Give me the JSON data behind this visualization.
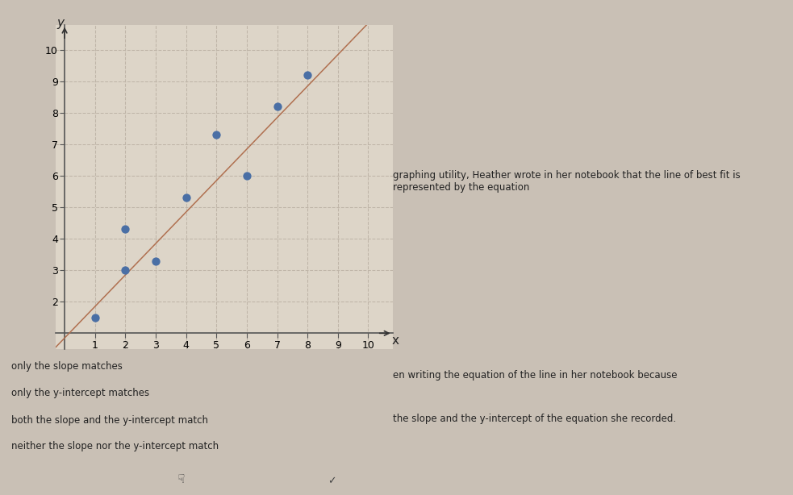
{
  "scatter_x": [
    1,
    2,
    2,
    3,
    4,
    5,
    6,
    7,
    8
  ],
  "scatter_y": [
    1.5,
    3.0,
    4.3,
    3.3,
    5.3,
    7.3,
    6.0,
    8.2,
    9.2
  ],
  "line_slope": 1.0,
  "line_intercept": 0.85,
  "xlim": [
    -0.3,
    10.8
  ],
  "ylim": [
    0.5,
    10.8
  ],
  "xticks": [
    1,
    2,
    3,
    4,
    5,
    6,
    7,
    8,
    9,
    10
  ],
  "yticks": [
    2,
    3,
    4,
    5,
    6,
    7,
    8,
    9,
    10
  ],
  "xlabel": "x",
  "ylabel": "y",
  "dot_color": "#4a6fa5",
  "dot_size": 55,
  "line_color": "#b07050",
  "plot_bg": "#ddd5c8",
  "grid_color": "#bfb5a8",
  "main_bg": "#c9c0b5",
  "top_bar_color": "#3a5a8a",
  "bottom_panel_color": "#cce8f4",
  "bottom_bar_color": "#b8b8b8",
  "answer_options": [
    "only the slope matches",
    "only the y-intercept matches",
    "both the slope and the y-intercept match",
    "neither the slope nor the y-intercept match"
  ],
  "right_text_line1": "graphing utility, Heather wrote in her notebook that the line of best fit is represented by the equation",
  "right_text_line2": "en writing the equation of the line in her notebook because",
  "right_text_line3": "the slope and the y-intercept of the equation she recorded."
}
